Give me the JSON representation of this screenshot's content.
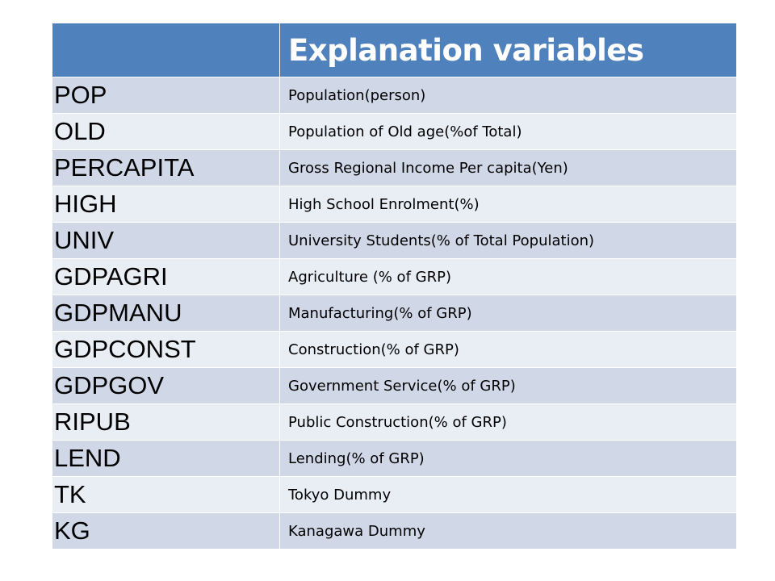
{
  "table": {
    "header": {
      "col1": "",
      "col2": "Explanation variables"
    },
    "rows": [
      {
        "code": "POP",
        "desc": "Population(person)"
      },
      {
        "code": "OLD",
        "desc": "Population of Old age(%of Total)"
      },
      {
        "code": "PERCAPITA",
        "desc": "Gross Regional Income Per capita(Yen)"
      },
      {
        "code": "HIGH",
        "desc": "High School Enrolment(%)"
      },
      {
        "code": "UNIV",
        "desc": "University Students(% of Total Population)"
      },
      {
        "code": "GDPAGRI",
        "desc": "Agriculture (% of GRP)"
      },
      {
        "code": "GDPMANU",
        "desc": "Manufacturing(% of GRP)"
      },
      {
        "code": "GDPCONST",
        "desc": "Construction(% of GRP)"
      },
      {
        "code": "GDPGOV",
        "desc": "Government Service(% of GRP)"
      },
      {
        "code": "RIPUB",
        "desc": "Public Construction(% of GRP)"
      },
      {
        "code": "LEND",
        "desc": "Lending(% of GRP)"
      },
      {
        "code": "TK",
        "desc": "Tokyo Dummy"
      },
      {
        "code": "KG",
        "desc": "Kanagawa Dummy"
      }
    ],
    "colors": {
      "header": "#4f81bd",
      "row_odd": "#d0d8e8",
      "row_even": "#e9edf4"
    }
  }
}
